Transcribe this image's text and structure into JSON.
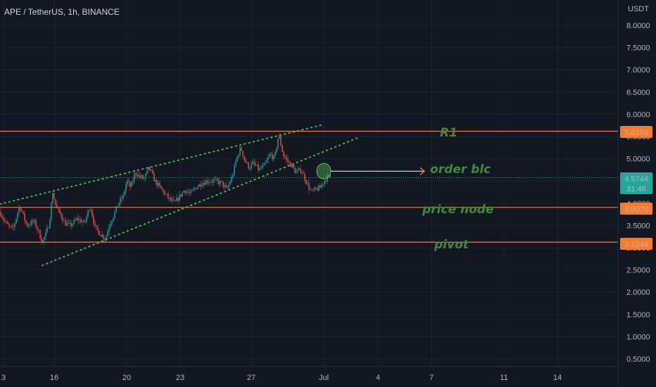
{
  "header": {
    "title": "APE / TetherUS, 1h, BINANCE"
  },
  "price_axis": {
    "unit": "USDT",
    "ticks": [
      "8.0000",
      "7.5000",
      "7.0000",
      "6.5000",
      "6.0000",
      "5.5000",
      "5.0000",
      "4.5000",
      "4.0000",
      "3.5000",
      "3.0000",
      "2.5000",
      "2.0000",
      "1.5000",
      "1.0000",
      "0.5000"
    ]
  },
  "time_axis": {
    "ticks": [
      "3",
      "16",
      "20",
      "23",
      "27",
      "Jul",
      "4",
      "7",
      "11",
      "14"
    ]
  },
  "badges": {
    "current_price": "4.5744",
    "countdown": "31:46",
    "r1": "5.6188",
    "price_node": "3.9070",
    "pivot": "3.1244"
  },
  "annotations": {
    "r1": "R1",
    "order_block": "order blc",
    "price_node": "price node",
    "pivot": "pivot"
  },
  "colors": {
    "background": "#131722",
    "up": "#26a69a",
    "down": "#ef5350",
    "level_line": "#f57c2c",
    "channel": "#4caf50",
    "annotation_text": "#3d8b40",
    "current_price": "#26a69a"
  },
  "chart_data": {
    "type": "candlestick",
    "symbol": "APE / TetherUS",
    "interval": "1h",
    "exchange": "BINANCE",
    "ylim": [
      0.3,
      8.5
    ],
    "levels": [
      {
        "label": "R1",
        "price": 5.6188
      },
      {
        "label": "price node",
        "price": 3.907
      },
      {
        "label": "pivot",
        "price": 3.1244
      }
    ],
    "current_price": 4.5744,
    "channel": {
      "upper": [
        [
          0,
          3.98
        ],
        [
          460,
          5.77
        ]
      ],
      "lower": [
        [
          60,
          2.6
        ],
        [
          510,
          5.48
        ]
      ]
    },
    "order_block": {
      "x": 460,
      "price": 4.72,
      "arrow_to_x": 603
    },
    "path": [
      [
        0,
        3.8
      ],
      [
        8,
        3.55
      ],
      [
        18,
        3.4
      ],
      [
        28,
        3.95
      ],
      [
        38,
        3.5
      ],
      [
        48,
        3.6
      ],
      [
        55,
        3.35
      ],
      [
        60,
        3.12
      ],
      [
        65,
        3.3
      ],
      [
        70,
        3.55
      ],
      [
        75,
        4.25
      ],
      [
        80,
        3.9
      ],
      [
        86,
        3.75
      ],
      [
        92,
        3.55
      ],
      [
        100,
        3.5
      ],
      [
        110,
        3.65
      ],
      [
        120,
        3.55
      ],
      [
        128,
        3.95
      ],
      [
        135,
        3.45
      ],
      [
        143,
        3.3
      ],
      [
        150,
        3.2
      ],
      [
        155,
        3.5
      ],
      [
        162,
        3.75
      ],
      [
        168,
        4.0
      ],
      [
        175,
        4.15
      ],
      [
        180,
        4.5
      ],
      [
        186,
        4.35
      ],
      [
        192,
        4.7
      ],
      [
        198,
        4.6
      ],
      [
        205,
        4.55
      ],
      [
        212,
        4.8
      ],
      [
        220,
        4.5
      ],
      [
        230,
        4.3
      ],
      [
        240,
        4.1
      ],
      [
        248,
        4.0
      ],
      [
        255,
        4.15
      ],
      [
        262,
        4.3
      ],
      [
        270,
        4.2
      ],
      [
        278,
        4.35
      ],
      [
        286,
        4.45
      ],
      [
        295,
        4.5
      ],
      [
        305,
        4.5
      ],
      [
        315,
        4.45
      ],
      [
        322,
        4.3
      ],
      [
        330,
        4.6
      ],
      [
        336,
        5.0
      ],
      [
        342,
        5.25
      ],
      [
        348,
        4.95
      ],
      [
        354,
        4.8
      ],
      [
        360,
        4.9
      ],
      [
        368,
        4.75
      ],
      [
        376,
        4.85
      ],
      [
        384,
        5.1
      ],
      [
        390,
        5.0
      ],
      [
        396,
        5.55
      ],
      [
        402,
        5.1
      ],
      [
        408,
        4.95
      ],
      [
        414,
        4.85
      ],
      [
        420,
        4.7
      ],
      [
        428,
        4.75
      ],
      [
        436,
        4.45
      ],
      [
        442,
        4.25
      ],
      [
        448,
        4.3
      ],
      [
        455,
        4.35
      ],
      [
        460,
        4.5
      ],
      [
        466,
        4.6
      ],
      [
        470,
        4.57
      ]
    ]
  }
}
